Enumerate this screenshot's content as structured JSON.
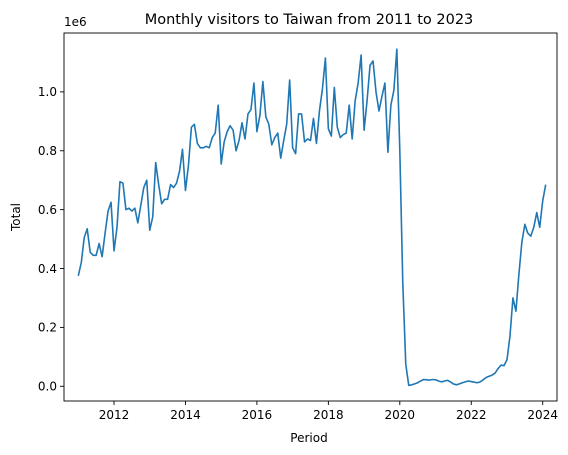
{
  "chart_data": {
    "type": "line",
    "title": "Monthly visitors to Taiwan from 2011 to 2023",
    "xlabel": "Period",
    "ylabel": "Total",
    "y_offset_label": "1e6",
    "xlim": [
      2010.6,
      2024.4
    ],
    "ylim": [
      -0.05,
      1.2
    ],
    "xticks": [
      2012,
      2014,
      2016,
      2018,
      2020,
      2022,
      2024
    ],
    "yticks": [
      0.0,
      0.2,
      0.4,
      0.6,
      0.8,
      1.0
    ],
    "ytick_labels": [
      "0.0",
      "0.2",
      "0.4",
      "0.6",
      "0.8",
      "1.0"
    ],
    "grid": false,
    "line_color": "#1f77b4",
    "series": [
      {
        "x_start": 2011.0,
        "x_step": 0.0833333,
        "values": [
          0.375,
          0.42,
          0.505,
          0.535,
          0.455,
          0.445,
          0.445,
          0.485,
          0.44,
          0.52,
          0.595,
          0.625,
          0.46,
          0.54,
          0.695,
          0.69,
          0.6,
          0.605,
          0.595,
          0.605,
          0.555,
          0.615,
          0.675,
          0.7,
          0.53,
          0.575,
          0.76,
          0.685,
          0.62,
          0.635,
          0.635,
          0.685,
          0.675,
          0.69,
          0.73,
          0.805,
          0.665,
          0.75,
          0.88,
          0.89,
          0.825,
          0.81,
          0.81,
          0.815,
          0.81,
          0.845,
          0.86,
          0.955,
          0.755,
          0.83,
          0.865,
          0.885,
          0.87,
          0.8,
          0.835,
          0.895,
          0.84,
          0.925,
          0.94,
          1.03,
          0.865,
          0.92,
          1.035,
          0.915,
          0.89,
          0.82,
          0.845,
          0.86,
          0.775,
          0.835,
          0.89,
          1.04,
          0.81,
          0.79,
          0.925,
          0.925,
          0.83,
          0.84,
          0.835,
          0.91,
          0.825,
          0.935,
          1.01,
          1.115,
          0.875,
          0.85,
          1.015,
          0.88,
          0.845,
          0.855,
          0.86,
          0.955,
          0.84,
          0.97,
          1.03,
          1.125,
          0.87,
          0.97,
          1.09,
          1.105,
          1.0,
          0.935,
          0.985,
          1.03,
          0.795,
          0.955,
          1.005,
          1.145,
          0.8,
          0.35,
          0.075,
          0.003,
          0.005,
          0.008,
          0.012,
          0.018,
          0.023,
          0.022,
          0.021,
          0.023,
          0.022,
          0.018,
          0.015,
          0.018,
          0.02,
          0.015,
          0.008,
          0.005,
          0.008,
          0.012,
          0.015,
          0.018,
          0.016,
          0.014,
          0.012,
          0.015,
          0.022,
          0.03,
          0.034,
          0.038,
          0.045,
          0.06,
          0.072,
          0.07,
          0.09,
          0.17,
          0.3,
          0.255,
          0.38,
          0.49,
          0.55,
          0.52,
          0.51,
          0.54,
          0.59,
          0.54,
          0.63,
          0.685
        ]
      }
    ]
  }
}
